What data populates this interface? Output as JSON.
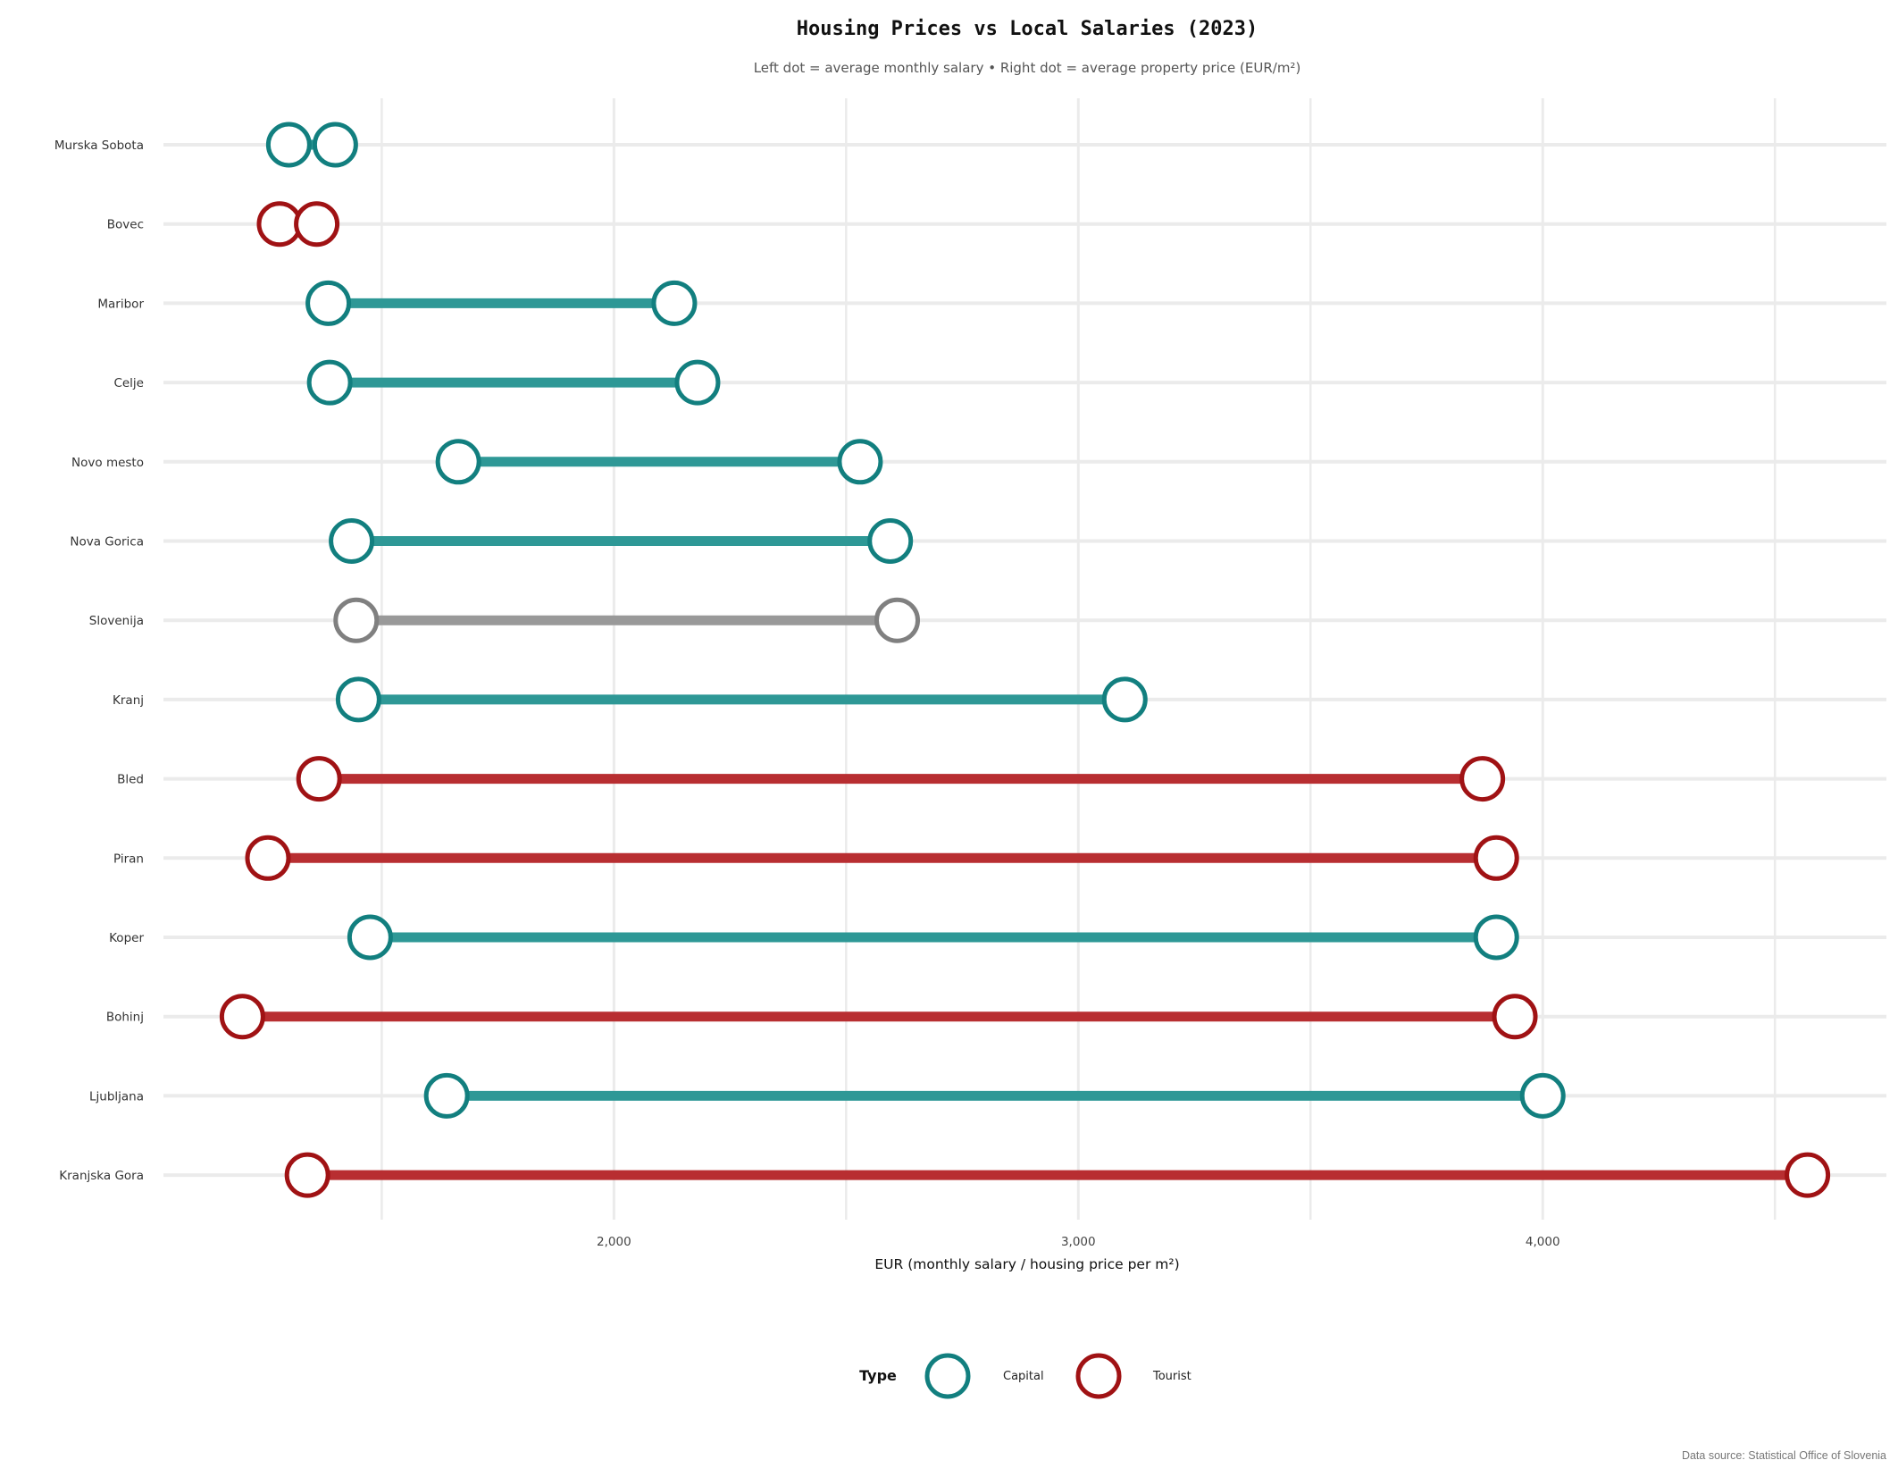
{
  "chart_data": {
    "type": "dumbbell",
    "title": "Housing Prices vs Local Salaries (2023)",
    "subtitle": "Left dot = average monthly salary • Right dot = average property price (EUR/m²)",
    "xlabel": "EUR (monthly salary / housing price per m²)",
    "xlim": [
      1030,
      4740
    ],
    "xticks": [
      2000,
      3000,
      4000
    ],
    "xtick_labels": [
      "2,000",
      "3,000",
      "4,000"
    ],
    "grid": "on",
    "legend": {
      "title": "Type",
      "placement": "bottom",
      "entries": [
        {
          "label": "Capital",
          "color": "#127f7f"
        },
        {
          "label": "Tourist",
          "color": "#a01214"
        }
      ]
    },
    "caption": "Data source: Statistical Office of Slovenia",
    "colors": {
      "capital_line": "#2e9896",
      "capital_ring": "#127f7f",
      "tourist_line": "#b82e31",
      "tourist_ring": "#a01214",
      "national_line": "#999999",
      "national_ring": "#808080"
    },
    "rows": [
      {
        "region": "Murska Sobota",
        "type": "Capital",
        "salary": 1300,
        "price": 1400
      },
      {
        "region": "Bovec",
        "type": "Tourist",
        "salary": 1280,
        "price": 1360
      },
      {
        "region": "Maribor",
        "type": "Capital",
        "salary": 1385,
        "price": 2130
      },
      {
        "region": "Celje",
        "type": "Capital",
        "salary": 1388,
        "price": 2180
      },
      {
        "region": "Novo mesto",
        "type": "Capital",
        "salary": 1665,
        "price": 2530
      },
      {
        "region": "Nova Gorica",
        "type": "Capital",
        "salary": 1435,
        "price": 2595
      },
      {
        "region": "Slovenija",
        "type": "National",
        "salary": 1445,
        "price": 2610
      },
      {
        "region": "Kranj",
        "type": "Capital",
        "salary": 1450,
        "price": 3100
      },
      {
        "region": "Bled",
        "type": "Tourist",
        "salary": 1365,
        "price": 3870
      },
      {
        "region": "Piran",
        "type": "Tourist",
        "salary": 1255,
        "price": 3900
      },
      {
        "region": "Koper",
        "type": "Capital",
        "salary": 1475,
        "price": 3900
      },
      {
        "region": "Bohinj",
        "type": "Tourist",
        "salary": 1200,
        "price": 3940
      },
      {
        "region": "Ljubljana",
        "type": "Capital",
        "salary": 1640,
        "price": 4000
      },
      {
        "region": "Kranjska Gora",
        "type": "Tourist",
        "salary": 1340,
        "price": 4570
      }
    ]
  }
}
